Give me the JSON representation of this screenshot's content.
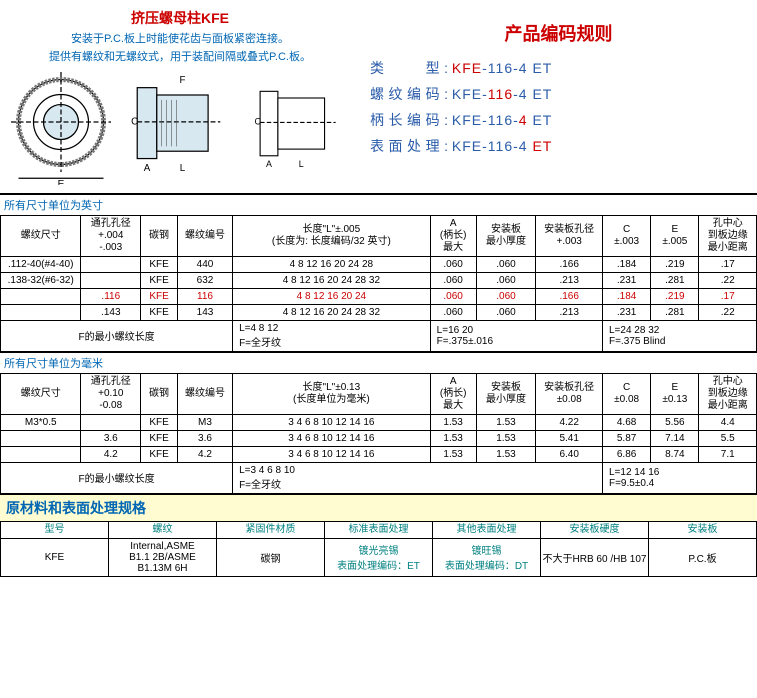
{
  "header": {
    "title": "挤压螺母柱KFE",
    "desc1": "安装于P.C.板上时能使花齿与面板紧密连接。",
    "desc2": "提供有螺纹和无螺纹式，用于装配间隔或叠式P.C.板。"
  },
  "encoding": {
    "title": "产品编码规则",
    "rows": [
      {
        "label": "类　　型:",
        "prefix": "",
        "hl": "KFE",
        "mid": "-116-4 ET"
      },
      {
        "label": "螺纹编码:",
        "prefix": "KFE-",
        "hl": "116",
        "mid": "-4 ET"
      },
      {
        "label": "柄长编码:",
        "prefix": "KFE-116-",
        "hl": "4",
        "mid": " ET"
      },
      {
        "label": "表面处理:",
        "prefix": "KFE-116-4 ",
        "hl": "ET",
        "mid": ""
      }
    ]
  },
  "section1": "所有尺寸单位为英寸",
  "table1": {
    "headers": [
      "螺纹尺寸",
      "通孔孔径\n+.004\n-.003",
      "碳钢",
      "螺纹编号",
      "长度\"L\"±.005\n(长度为: 长度编码/32 英寸)",
      "A\n(柄长)\n最大",
      "安装板\n最小厚度",
      "安装板孔径\n+.003",
      "C\n±.003",
      "E\n±.005",
      "孔中心\n到板边缘\n最小距离"
    ],
    "rows": [
      [
        ".112-40(#4-40)",
        "",
        "KFE",
        "440",
        "4  8  12  16  20  24  28",
        ".060",
        ".060",
        ".166",
        ".184",
        ".219",
        ".17"
      ],
      [
        ".138-32(#6-32)",
        "",
        "KFE",
        "632",
        "4  8  12  16  20  24  28  32",
        ".060",
        ".060",
        ".213",
        ".231",
        ".281",
        ".22"
      ],
      [
        "",
        ".116",
        "KFE",
        "116",
        "4  8  12  16  20  24",
        ".060",
        ".060",
        ".166",
        ".184",
        ".219",
        ".17"
      ],
      [
        "",
        ".143",
        "KFE",
        "143",
        "4  8  12  16  20  24  28  32",
        ".060",
        ".060",
        ".213",
        ".231",
        ".281",
        ".22"
      ]
    ],
    "footer": [
      "F的最小螺纹长度",
      "L=4  8  12\nF=全牙纹",
      "L=16  20\nF=.375±.016",
      "L=24  28  32\nF=.375 Blind"
    ]
  },
  "section2": "所有尺寸单位为毫米",
  "table2": {
    "headers": [
      "螺纹尺寸",
      "通孔孔径\n+0.10\n-0.08",
      "碳钢",
      "螺纹编号",
      "长度\"L\"±0.13\n(长度单位为毫米)",
      "A\n(柄长)\n最大",
      "安装板\n最小厚度",
      "安装板孔径\n±0.08",
      "C\n±0.08",
      "E\n±0.13",
      "孔中心\n到板边缘\n最小距离"
    ],
    "rows": [
      [
        "M3*0.5",
        "",
        "KFE",
        "M3",
        "3  4  6  8  10  12  14  16",
        "1.53",
        "1.53",
        "4.22",
        "4.68",
        "5.56",
        "4.4"
      ],
      [
        "",
        "3.6",
        "KFE",
        "3.6",
        "3  4  6  8  10  12  14  16",
        "1.53",
        "1.53",
        "5.41",
        "5.87",
        "7.14",
        "5.5"
      ],
      [
        "",
        "4.2",
        "KFE",
        "4.2",
        "3  4  6  8  10  12  14  16",
        "1.53",
        "1.53",
        "6.40",
        "6.86",
        "8.74",
        "7.1"
      ]
    ],
    "footer": [
      "F的最小螺纹长度",
      "L=3  4  6  8  10\nF=全牙纹",
      "L=12  14  16\nF=9.5±0.4"
    ]
  },
  "matTitle": "原材料和表面处理规格",
  "table3": {
    "headers": [
      "型号",
      "螺纹",
      "紧固件材质",
      "标准表面处理",
      "其他表面处理",
      "安装板硬度",
      "安装板"
    ],
    "row": [
      "KFE",
      "Internal,ASME\nB1.1 2B/ASME\nB1.13M 6H",
      "碳钢",
      "镀光亮锡",
      "表面处理编码：ET",
      "镀旺锡",
      "表面处理编码：DT",
      "不大于HRB 60 /HB 107",
      "P.C.板"
    ]
  }
}
